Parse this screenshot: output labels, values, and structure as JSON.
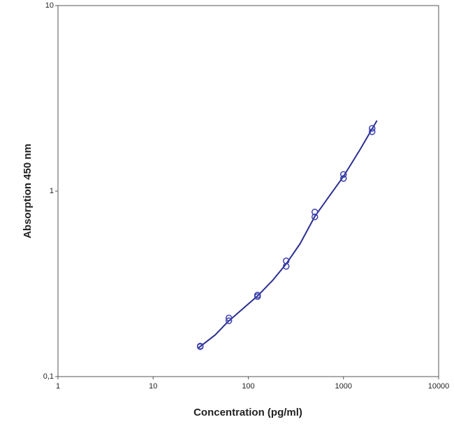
{
  "chart_data": {
    "type": "scatter",
    "xlabel": "Concentration (pg/ml)",
    "ylabel": "Absorption 450 nm",
    "xscale": "log",
    "yscale": "log",
    "xlim": [
      1,
      10000
    ],
    "ylim": [
      0.1,
      10
    ],
    "xticks": [
      1,
      10,
      100,
      1000,
      10000
    ],
    "yticks": [
      {
        "value": 0.1,
        "label": "0,1"
      },
      1,
      10
    ],
    "points": {
      "color": "#3a3fb0",
      "x": [
        31.25,
        31.25,
        62.5,
        62.5,
        125,
        125,
        250,
        250,
        500,
        500,
        1000,
        1000,
        2000,
        2000
      ],
      "values": [
        0.146,
        0.145,
        0.207,
        0.2,
        0.275,
        0.27,
        0.421,
        0.393,
        0.771,
        0.726,
        1.23,
        1.17,
        2.18,
        2.09
      ]
    },
    "curve": {
      "color": "#2b2f8f",
      "x": [
        30,
        45,
        60,
        90,
        125,
        180,
        250,
        350,
        500,
        700,
        1000,
        1500,
        2250
      ],
      "values": [
        0.143,
        0.168,
        0.196,
        0.235,
        0.272,
        0.33,
        0.405,
        0.52,
        0.73,
        0.93,
        1.2,
        1.68,
        2.4
      ]
    }
  }
}
